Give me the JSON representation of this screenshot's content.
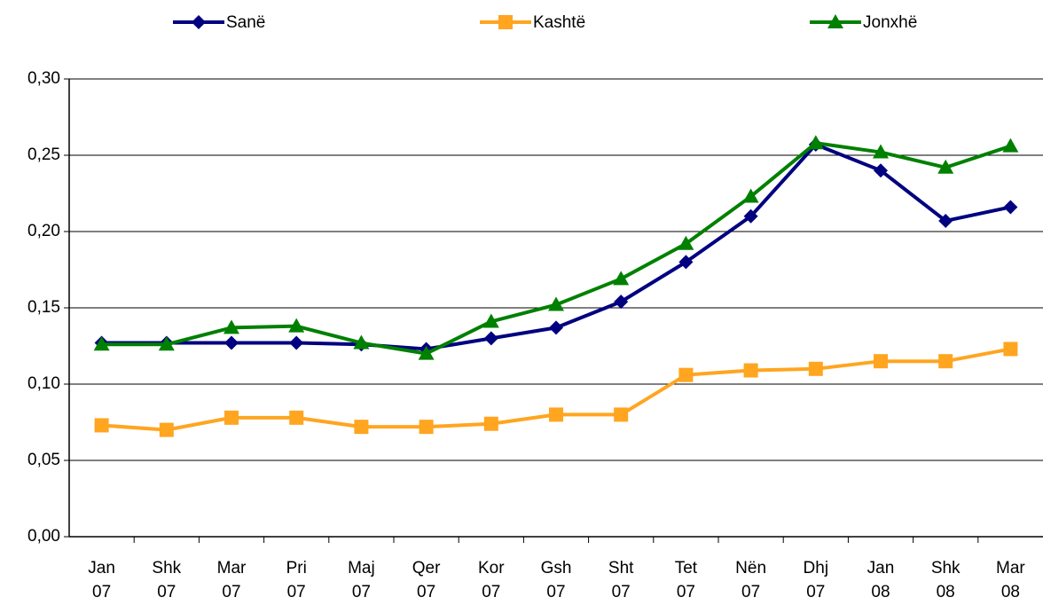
{
  "chart_data": {
    "type": "line",
    "categories": [
      "Jan 07",
      "Shk 07",
      "Mar 07",
      "Pri 07",
      "Maj 07",
      "Qer 07",
      "Kor 07",
      "Gsh 07",
      "Sht 07",
      "Tet 07",
      "Nën 07",
      "Dhj 07",
      "Jan 08",
      "Shk 08",
      "Mar 08"
    ],
    "series": [
      {
        "name": "Sanë",
        "color": "#000080",
        "marker": "diamond",
        "values": [
          0.127,
          0.127,
          0.127,
          0.127,
          0.126,
          0.123,
          0.13,
          0.137,
          0.154,
          0.18,
          0.21,
          0.257,
          0.24,
          0.207,
          0.216
        ]
      },
      {
        "name": "Kashtë",
        "color": "#FFA520",
        "marker": "square",
        "values": [
          0.073,
          0.07,
          0.078,
          0.078,
          0.072,
          0.072,
          0.074,
          0.08,
          0.08,
          0.106,
          0.109,
          0.11,
          0.115,
          0.115,
          0.123
        ]
      },
      {
        "name": "Jonxhë",
        "color": "#008000",
        "marker": "triangle",
        "values": [
          0.126,
          0.126,
          0.137,
          0.138,
          0.127,
          0.12,
          0.141,
          0.152,
          0.169,
          0.192,
          0.223,
          0.258,
          0.252,
          0.242,
          0.256
        ]
      }
    ],
    "ylim": [
      0,
      0.3
    ],
    "yticks": [
      {
        "value": 0,
        "label": "0,00"
      },
      {
        "value": 0.05,
        "label": "0,05"
      },
      {
        "value": 0.1,
        "label": "0,10"
      },
      {
        "value": 0.15,
        "label": "0,15"
      },
      {
        "value": 0.2,
        "label": "0,20"
      },
      {
        "value": 0.25,
        "label": "0,25"
      },
      {
        "value": 0.3,
        "label": "0,30"
      }
    ],
    "grid": true,
    "legend": "top"
  }
}
